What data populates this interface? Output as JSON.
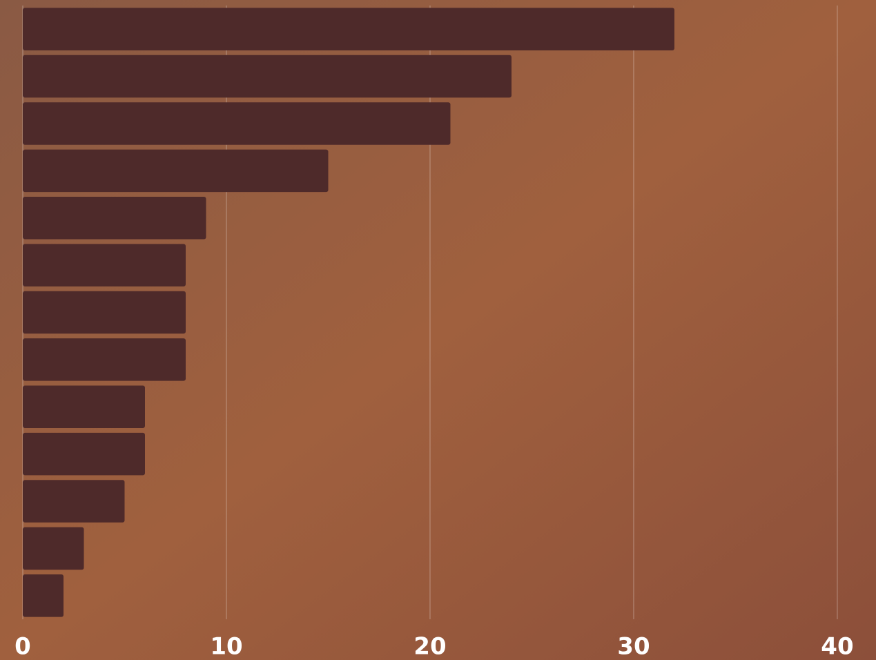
{
  "chart_data": {
    "type": "hbar",
    "categories": [
      null,
      null,
      null,
      null,
      null,
      null,
      null,
      null,
      null,
      null,
      null,
      null,
      null
    ],
    "values": [
      32,
      24,
      21,
      15,
      9,
      8,
      8,
      8,
      6,
      6,
      5,
      3,
      2
    ],
    "color": "#4e2a2a",
    "xlim": [
      0,
      41.9
    ],
    "xticks": [
      0,
      10,
      20,
      30,
      40
    ],
    "grid": true
  }
}
